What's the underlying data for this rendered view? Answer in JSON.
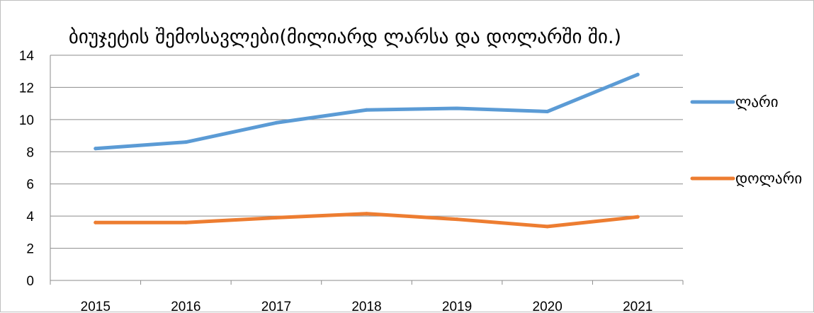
{
  "chart_data": {
    "type": "line",
    "title": "ბიუჯეტის შემოსავლები(მილიარდ ლარსა და დოლარში ში.)",
    "xlabel": "",
    "ylabel": "",
    "categories": [
      "2015",
      "2016",
      "2017",
      "2018",
      "2019",
      "2020",
      "2021"
    ],
    "ylim": [
      0,
      14
    ],
    "yticks": [
      0,
      2,
      4,
      6,
      8,
      10,
      12,
      14
    ],
    "grid": true,
    "legend_position": "right",
    "series": [
      {
        "name": "ლარი",
        "color": "#5b9bd5",
        "values": [
          8.2,
          8.6,
          9.8,
          10.6,
          10.7,
          10.5,
          12.8
        ]
      },
      {
        "name": "დოლარი",
        "color": "#ed7d31",
        "values": [
          3.6,
          3.6,
          3.9,
          4.15,
          3.8,
          3.35,
          3.95
        ]
      }
    ]
  }
}
